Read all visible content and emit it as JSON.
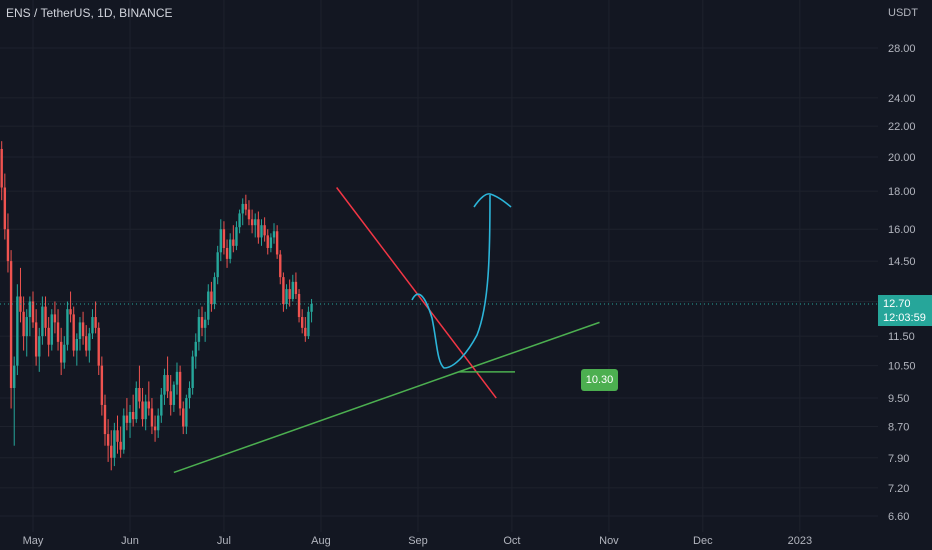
{
  "header": {
    "symbol_title": "ENS / TetherUS, 1D, BINANCE",
    "currency": "USDT"
  },
  "price_badge": {
    "price": "12.70",
    "countdown": "12:03:59"
  },
  "target_label": "10.30",
  "colors": {
    "background": "#131722",
    "grid": "#1e222d",
    "up": "#26a69a",
    "down": "#ef5350",
    "support_line": "#4caf50",
    "resistance_line": "#f23645",
    "projection": "#2cb5d9",
    "axis_text": "#b2b5be"
  },
  "chart_data": {
    "type": "candlestick",
    "title": "ENS / TetherUS, 1D, BINANCE",
    "ylabel": "USDT",
    "ylim": [
      6.3,
      31
    ],
    "y_scale": "log",
    "grid": true,
    "y_ticks": [
      {
        "value": 28.0,
        "label": "28.00"
      },
      {
        "value": 24.0,
        "label": "24.00"
      },
      {
        "value": 22.0,
        "label": "22.00"
      },
      {
        "value": 20.0,
        "label": "20.00"
      },
      {
        "value": 18.0,
        "label": "18.00"
      },
      {
        "value": 16.0,
        "label": "16.00"
      },
      {
        "value": 14.5,
        "label": "14.50"
      },
      {
        "value": 12.8,
        "label": "12.80"
      },
      {
        "value": 11.5,
        "label": "11.50"
      },
      {
        "value": 10.5,
        "label": "10.50"
      },
      {
        "value": 9.5,
        "label": "9.50"
      },
      {
        "value": 8.7,
        "label": "8.70"
      },
      {
        "value": 7.9,
        "label": "7.90"
      },
      {
        "value": 7.2,
        "label": "7.20"
      },
      {
        "value": 6.6,
        "label": "6.60"
      }
    ],
    "x_ticks": [
      {
        "date": "2022-05-01",
        "label": "May"
      },
      {
        "date": "2022-06-01",
        "label": "Jun"
      },
      {
        "date": "2022-07-01",
        "label": "Jul"
      },
      {
        "date": "2022-08-01",
        "label": "Aug"
      },
      {
        "date": "2022-09-01",
        "label": "Sep"
      },
      {
        "date": "2022-10-01",
        "label": "Oct"
      },
      {
        "date": "2022-11-01",
        "label": "Nov"
      },
      {
        "date": "2022-12-01",
        "label": "Dec"
      },
      {
        "date": "2023-01-01",
        "label": "2023"
      }
    ],
    "x_start": "2022-04-08",
    "candles": [
      [
        14.5,
        15.2,
        14.0,
        14.8
      ],
      [
        14.8,
        15.8,
        14.5,
        15.5
      ],
      [
        15.5,
        16.5,
        15.0,
        16.2
      ],
      [
        16.2,
        17.5,
        15.8,
        17.0
      ],
      [
        17.0,
        18.2,
        16.5,
        17.8
      ],
      [
        17.8,
        19.5,
        17.2,
        19.0
      ],
      [
        19.0,
        21.5,
        18.5,
        21.0
      ],
      [
        21.0,
        23.0,
        20.0,
        22.5
      ],
      [
        22.5,
        25.5,
        21.5,
        24.8
      ],
      [
        24.8,
        26.5,
        23.0,
        25.5
      ],
      [
        25.5,
        27.5,
        24.0,
        26.8
      ],
      [
        26.8,
        28.0,
        22.0,
        23.0
      ],
      [
        23.0,
        24.5,
        19.5,
        20.5
      ],
      [
        20.5,
        21.0,
        17.5,
        18.2
      ],
      [
        18.2,
        19.0,
        15.5,
        16.0
      ],
      [
        16.0,
        16.8,
        14.0,
        14.5
      ],
      [
        14.5,
        15.0,
        9.2,
        9.8
      ],
      [
        9.8,
        10.8,
        8.2,
        10.5
      ],
      [
        10.5,
        13.5,
        10.2,
        13.0
      ],
      [
        13.0,
        14.2,
        12.0,
        12.4
      ],
      [
        12.4,
        13.0,
        11.0,
        11.5
      ],
      [
        11.5,
        12.5,
        10.8,
        12.2
      ],
      [
        12.2,
        13.0,
        11.5,
        12.8
      ],
      [
        12.8,
        13.2,
        11.8,
        12.0
      ],
      [
        12.0,
        12.5,
        10.5,
        10.8
      ],
      [
        10.8,
        11.8,
        10.3,
        11.5
      ],
      [
        11.5,
        13.0,
        11.2,
        12.6
      ],
      [
        12.6,
        13.0,
        11.5,
        11.8
      ],
      [
        11.8,
        12.2,
        10.8,
        11.2
      ],
      [
        11.2,
        12.5,
        11.0,
        12.3
      ],
      [
        12.3,
        12.8,
        11.6,
        12.0
      ],
      [
        12.0,
        12.5,
        11.0,
        11.3
      ],
      [
        11.3,
        11.8,
        10.2,
        10.6
      ],
      [
        10.6,
        11.5,
        10.4,
        11.2
      ],
      [
        11.2,
        12.8,
        11.0,
        12.5
      ],
      [
        12.5,
        13.2,
        12.0,
        12.3
      ],
      [
        12.3,
        12.6,
        10.8,
        11.0
      ],
      [
        11.0,
        11.6,
        10.5,
        11.4
      ],
      [
        11.4,
        12.2,
        11.0,
        12.0
      ],
      [
        12.0,
        12.4,
        11.2,
        11.5
      ],
      [
        11.5,
        11.9,
        10.8,
        11.0
      ],
      [
        11.0,
        11.8,
        10.6,
        11.6
      ],
      [
        11.6,
        12.5,
        11.4,
        12.2
      ],
      [
        12.2,
        12.8,
        11.6,
        11.8
      ],
      [
        11.8,
        12.0,
        10.2,
        10.5
      ],
      [
        10.5,
        10.8,
        9.0,
        9.3
      ],
      [
        9.3,
        9.6,
        8.2,
        8.5
      ],
      [
        8.5,
        8.9,
        7.8,
        8.2
      ],
      [
        8.2,
        8.6,
        7.6,
        7.9
      ],
      [
        7.9,
        8.8,
        7.7,
        8.6
      ],
      [
        8.6,
        9.0,
        8.0,
        8.3
      ],
      [
        8.3,
        8.7,
        7.9,
        8.1
      ],
      [
        8.1,
        9.2,
        8.0,
        9.0
      ],
      [
        9.0,
        9.5,
        8.6,
        8.8
      ],
      [
        8.8,
        9.3,
        8.4,
        9.1
      ],
      [
        9.1,
        9.6,
        8.7,
        8.9
      ],
      [
        8.9,
        10.0,
        8.8,
        9.8
      ],
      [
        9.8,
        10.5,
        9.2,
        9.4
      ],
      [
        9.4,
        9.8,
        8.7,
        8.9
      ],
      [
        8.9,
        9.6,
        8.6,
        9.4
      ],
      [
        9.4,
        10.0,
        9.0,
        9.2
      ],
      [
        9.2,
        9.5,
        8.5,
        8.7
      ],
      [
        8.7,
        9.0,
        8.3,
        8.6
      ],
      [
        8.6,
        9.2,
        8.4,
        9.0
      ],
      [
        9.0,
        9.8,
        8.8,
        9.6
      ],
      [
        9.6,
        10.4,
        9.3,
        10.2
      ],
      [
        10.2,
        10.8,
        9.5,
        9.7
      ],
      [
        9.7,
        10.2,
        9.0,
        9.3
      ],
      [
        9.3,
        10.0,
        9.1,
        9.9
      ],
      [
        9.9,
        10.6,
        9.6,
        10.3
      ],
      [
        10.3,
        10.5,
        9.0,
        9.2
      ],
      [
        9.2,
        9.4,
        8.5,
        8.7
      ],
      [
        8.7,
        9.6,
        8.5,
        9.5
      ],
      [
        9.5,
        10.0,
        9.2,
        9.8
      ],
      [
        9.8,
        11.0,
        9.6,
        10.8
      ],
      [
        10.8,
        11.6,
        10.4,
        11.3
      ],
      [
        11.3,
        12.5,
        11.0,
        12.2
      ],
      [
        12.2,
        12.6,
        11.5,
        11.8
      ],
      [
        11.8,
        12.4,
        11.3,
        12.1
      ],
      [
        12.1,
        13.5,
        11.9,
        13.2
      ],
      [
        13.2,
        13.6,
        12.4,
        12.7
      ],
      [
        12.7,
        14.0,
        12.5,
        13.8
      ],
      [
        13.8,
        15.2,
        13.5,
        14.9
      ],
      [
        14.9,
        16.5,
        14.5,
        16.0
      ],
      [
        16.0,
        16.4,
        14.8,
        15.1
      ],
      [
        15.1,
        15.5,
        14.2,
        14.6
      ],
      [
        14.6,
        15.8,
        14.4,
        15.5
      ],
      [
        15.5,
        16.2,
        14.9,
        15.2
      ],
      [
        15.2,
        16.4,
        15.0,
        16.1
      ],
      [
        16.1,
        17.0,
        15.8,
        16.8
      ],
      [
        16.8,
        17.6,
        16.2,
        17.3
      ],
      [
        17.3,
        17.8,
        16.7,
        17.0
      ],
      [
        17.0,
        17.5,
        16.2,
        16.5
      ],
      [
        16.5,
        17.0,
        15.8,
        16.2
      ],
      [
        16.2,
        16.8,
        15.6,
        16.5
      ],
      [
        16.5,
        16.9,
        15.3,
        15.6
      ],
      [
        15.6,
        16.5,
        15.2,
        16.2
      ],
      [
        16.2,
        16.6,
        15.4,
        15.7
      ],
      [
        15.7,
        16.0,
        14.8,
        15.1
      ],
      [
        15.1,
        15.8,
        14.9,
        15.6
      ],
      [
        15.6,
        16.3,
        15.3,
        15.9
      ],
      [
        15.9,
        16.2,
        14.6,
        14.8
      ],
      [
        14.8,
        15.0,
        13.5,
        13.8
      ],
      [
        13.8,
        14.0,
        12.4,
        12.7
      ],
      [
        12.7,
        13.5,
        12.5,
        13.3
      ],
      [
        13.3,
        13.7,
        12.6,
        12.9
      ],
      [
        12.9,
        13.9,
        12.8,
        13.6
      ],
      [
        13.6,
        14.0,
        12.9,
        13.1
      ],
      [
        13.1,
        13.3,
        12.0,
        12.2
      ],
      [
        12.2,
        12.5,
        11.6,
        11.8
      ],
      [
        11.8,
        12.2,
        11.3,
        11.5
      ],
      [
        11.5,
        12.6,
        11.4,
        12.4
      ],
      [
        12.4,
        12.9,
        12.0,
        12.7
      ]
    ],
    "series": [
      {
        "type": "line",
        "points": [
          [
            "2022-06-15",
            7.55
          ],
          [
            "2022-09-14",
            10.3
          ],
          [
            "2022-10-29",
            12.0
          ]
        ]
      },
      {
        "type": "line",
        "points": [
          [
            "2022-08-06",
            18.2
          ],
          [
            "2022-09-26",
            9.5
          ]
        ]
      },
      {
        "type": "line",
        "points": [
          [
            "2022-09-14",
            10.3
          ],
          [
            "2022-10-02",
            10.3
          ]
        ]
      }
    ],
    "annotations": [
      {
        "type": "price_label",
        "text": "10.30",
        "price": 10.3
      }
    ]
  }
}
